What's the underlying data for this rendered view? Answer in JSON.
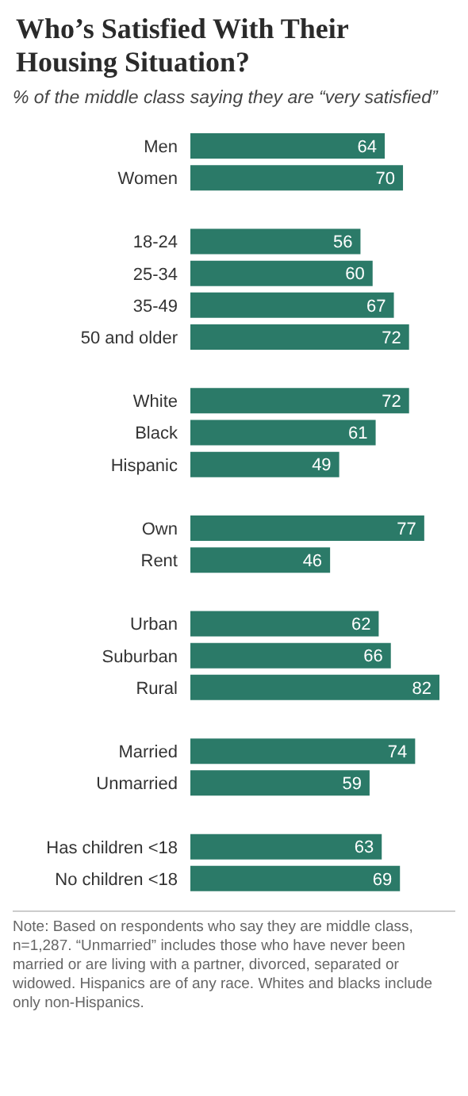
{
  "chart_data": {
    "type": "bar",
    "orientation": "horizontal",
    "title": "Who’s Satisfied With Their Housing Situation?",
    "subtitle": "% of the middle class saying they are “very satisfied”",
    "categories": [
      "Men",
      "Women",
      null,
      "18-24",
      "25-34",
      "35-49",
      "50 and older",
      null,
      "White",
      "Black",
      "Hispanic",
      null,
      "Own",
      "Rent",
      null,
      "Urban",
      "Suburban",
      "Rural",
      null,
      "Married",
      "Unmarried",
      null,
      "Has children <18",
      "No children <18"
    ],
    "values": [
      64,
      70,
      null,
      56,
      60,
      67,
      72,
      null,
      72,
      61,
      49,
      null,
      77,
      46,
      null,
      62,
      66,
      82,
      null,
      74,
      59,
      null,
      63,
      69
    ],
    "color": "#2b7a68",
    "tick_labels": "y",
    "data_labels": true,
    "grid": false,
    "legend": false,
    "annotations": [
      "Note: Based on respondents who say they are middle class, n=1,287. “Unmarried” includes those who have never been married or are living with a partner, divorced, separated or widowed. Hispanics are of any race. Whites and blacks include only non-Hispanics."
    ]
  }
}
